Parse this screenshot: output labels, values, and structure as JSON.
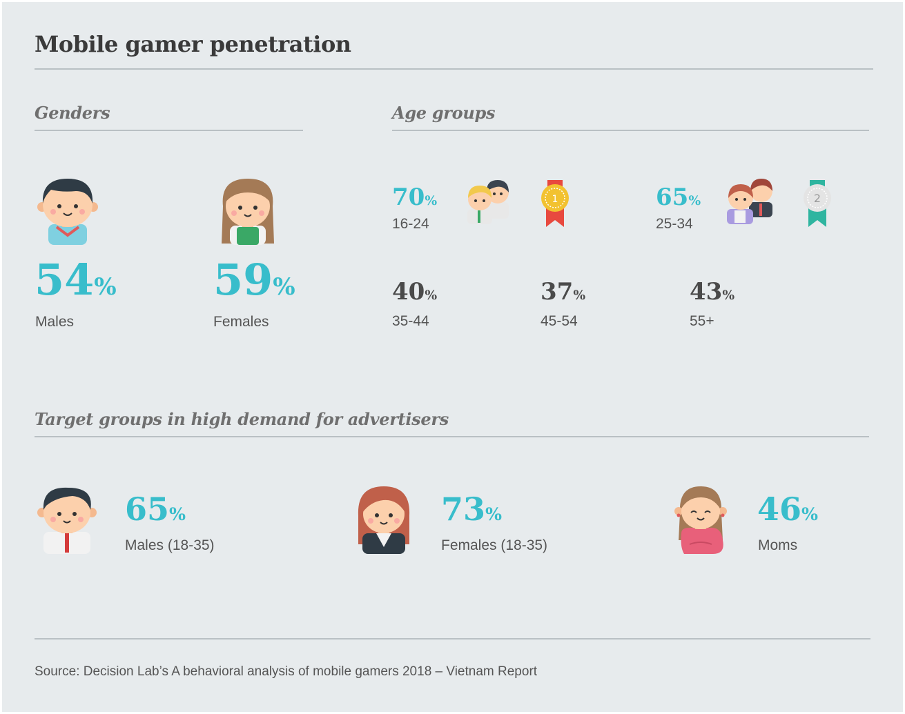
{
  "title": "Mobile gamer penetration",
  "genders": {
    "heading": "Genders",
    "males": {
      "value": "54",
      "unit": "%",
      "label": "Males"
    },
    "females": {
      "value": "59",
      "unit": "%",
      "label": "Females"
    }
  },
  "age_groups": {
    "heading": "Age groups",
    "items": [
      {
        "value": "70",
        "unit": "%",
        "label": "16-24",
        "rank": "1"
      },
      {
        "value": "65",
        "unit": "%",
        "label": "25-34",
        "rank": "2"
      },
      {
        "value": "40",
        "unit": "%",
        "label": "35-44"
      },
      {
        "value": "37",
        "unit": "%",
        "label": "45-54"
      },
      {
        "value": "43",
        "unit": "%",
        "label": "55+"
      }
    ]
  },
  "target_groups": {
    "heading": "Target groups in high demand for advertisers",
    "items": [
      {
        "value": "65",
        "unit": "%",
        "label": "Males (18-35)"
      },
      {
        "value": "73",
        "unit": "%",
        "label": "Females (18-35)"
      },
      {
        "value": "46",
        "unit": "%",
        "label": "Moms"
      }
    ]
  },
  "source": "Source: Decision Lab’s A behavioral analysis of mobile gamers 2018 – Vietnam Report",
  "colors": {
    "accent": "#38bdcb",
    "dark_value": "#4a4a4a",
    "background": "#e7ebed"
  }
}
